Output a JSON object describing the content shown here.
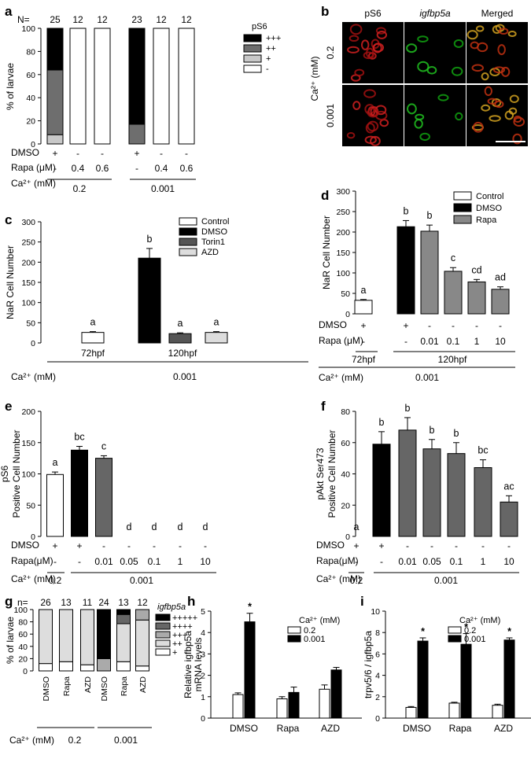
{
  "panels": [
    {
      "id": "a",
      "label": "a"
    },
    {
      "id": "b",
      "label": "b"
    },
    {
      "id": "c",
      "label": "c"
    },
    {
      "id": "d",
      "label": "d"
    },
    {
      "id": "e",
      "label": "e"
    },
    {
      "id": "f",
      "label": "f"
    },
    {
      "id": "g",
      "label": "g"
    },
    {
      "id": "h",
      "label": "h"
    },
    {
      "id": "i",
      "label": "i"
    }
  ],
  "micrograph_b": {
    "columns": [
      "pS6",
      "igfbp5a",
      "Merged"
    ],
    "side_label": "Ca²⁺ (mM)",
    "rows": [
      "0.2",
      "0.001"
    ]
  },
  "chart_data": [
    {
      "panel": "a",
      "type": "bar",
      "stacked": true,
      "ylabel": "% of larvae",
      "ylim": [
        0,
        100
      ],
      "yticks": [
        "0",
        "20",
        "40",
        "60",
        "80",
        "100"
      ],
      "n_label": "N=",
      "n": [
        "25",
        "12",
        "12",
        "23",
        "12",
        "12"
      ],
      "legend_title": "pS6",
      "series": [
        {
          "name": "+++",
          "color": "#000000",
          "values": [
            36,
            0,
            0,
            83,
            0,
            0
          ]
        },
        {
          "name": "++",
          "color": "#6e6e6e",
          "values": [
            56,
            0,
            0,
            17,
            0,
            0
          ]
        },
        {
          "name": "+",
          "color": "#c8c8c8",
          "values": [
            8,
            0,
            0,
            0,
            0,
            0
          ]
        },
        {
          "name": "-",
          "color": "#ffffff",
          "values": [
            0,
            100,
            100,
            0,
            100,
            100
          ]
        }
      ],
      "row_labels": [
        "DMSO",
        "Rapa (μM)",
        "Ca²⁺ (mM)"
      ],
      "dmso": [
        "+",
        "-",
        "-",
        "+",
        "-",
        "-"
      ],
      "rapa": [
        "-",
        "0.4",
        "0.6",
        "-",
        "0.4",
        "0.6"
      ],
      "ca_groups": [
        "0.2",
        "0.001"
      ]
    },
    {
      "panel": "c",
      "type": "bar",
      "ylabel": "NaR Cell Number",
      "ylim": [
        0,
        300
      ],
      "yticks": [
        "0",
        "50",
        "100",
        "150",
        "200",
        "250",
        "300"
      ],
      "categories": [
        "72hpf",
        "120hpf"
      ],
      "bars": [
        {
          "group": "72hpf",
          "series": "Control",
          "value": 26,
          "err": 2,
          "sig": "a"
        },
        {
          "group": "120hpf",
          "series": "DMSO",
          "value": 210,
          "err": 24,
          "sig": "b"
        },
        {
          "group": "120hpf",
          "series": "Torin1",
          "value": 23,
          "err": 2,
          "sig": "a"
        },
        {
          "group": "120hpf",
          "series": "AZD",
          "value": 26,
          "err": 2,
          "sig": "a"
        }
      ],
      "legend": [
        {
          "name": "Control",
          "color": "#ffffff"
        },
        {
          "name": "DMSO",
          "color": "#000000"
        },
        {
          "name": "Torin1",
          "color": "#555555"
        },
        {
          "name": "AZD",
          "color": "#dddddd"
        }
      ],
      "ca_label": "Ca²⁺ (mM)",
      "ca_value": "0.001"
    },
    {
      "panel": "d",
      "type": "bar",
      "ylabel": "NaR Cell Number",
      "ylim": [
        0,
        300
      ],
      "yticks": [
        "0",
        "50",
        "100",
        "150",
        "200",
        "250",
        "300"
      ],
      "bars": [
        {
          "value": 33,
          "err": 2,
          "sig": "a",
          "color": "#ffffff"
        },
        {
          "value": 213,
          "err": 15,
          "sig": "b",
          "color": "#000000"
        },
        {
          "value": 202,
          "err": 15,
          "sig": "b",
          "color": "#888888"
        },
        {
          "value": 104,
          "err": 9,
          "sig": "c",
          "color": "#888888"
        },
        {
          "value": 78,
          "err": 6,
          "sig": "cd",
          "color": "#888888"
        },
        {
          "value": 60,
          "err": 6,
          "sig": "ad",
          "color": "#888888"
        }
      ],
      "legend": [
        {
          "name": "Control",
          "color": "#ffffff"
        },
        {
          "name": "DMSO",
          "color": "#000000"
        },
        {
          "name": "Rapa",
          "color": "#888888"
        }
      ],
      "row_labels": [
        "DMSO",
        "Rapa (μM)",
        "Ca²⁺ (mM)"
      ],
      "dmso": [
        "+",
        "+",
        "-",
        "-",
        "-",
        "-"
      ],
      "rapa": [
        "-",
        "-",
        "0.01",
        "0.1",
        "1",
        "10"
      ],
      "hpf": [
        "72hpf",
        "120hpf"
      ],
      "ca_value": "0.001"
    },
    {
      "panel": "e",
      "type": "bar",
      "ylabel": [
        "pS6",
        "Positive Cell Number"
      ],
      "ylim": [
        0,
        200
      ],
      "yticks": [
        "0",
        "50",
        "100",
        "150",
        "200"
      ],
      "bars": [
        {
          "value": 99,
          "err": 4,
          "sig": "a",
          "color": "#ffffff"
        },
        {
          "value": 138,
          "err": 6,
          "sig": "bc",
          "color": "#000000"
        },
        {
          "value": 125,
          "err": 4,
          "sig": "c",
          "color": "#666666"
        },
        {
          "value": 0,
          "err": 0,
          "sig": "d",
          "color": "#666666"
        },
        {
          "value": 0,
          "err": 0,
          "sig": "d",
          "color": "#666666"
        },
        {
          "value": 0,
          "err": 0,
          "sig": "d",
          "color": "#666666"
        },
        {
          "value": 0,
          "err": 0,
          "sig": "d",
          "color": "#666666"
        }
      ],
      "row_labels": [
        "DMSO",
        "Rapa(μM)",
        "Ca²⁺ (mM)"
      ],
      "dmso": [
        "+",
        "+",
        "-",
        "-",
        "-",
        "-",
        "-"
      ],
      "rapa": [
        "-",
        "-",
        "0.01",
        "0.05",
        "0.1",
        "1",
        "10"
      ],
      "ca_groups": [
        "0.2",
        "0.001"
      ]
    },
    {
      "panel": "f",
      "type": "bar",
      "ylabel": [
        "pAkt Ser473",
        "Positive Cell Number"
      ],
      "ylim": [
        0,
        80
      ],
      "yticks": [
        "0",
        "20",
        "40",
        "60",
        "80"
      ],
      "bars": [
        {
          "value": 0,
          "err": 0,
          "sig": "a",
          "color": "#ffffff"
        },
        {
          "value": 59,
          "err": 8,
          "sig": "b",
          "color": "#000000"
        },
        {
          "value": 68,
          "err": 8,
          "sig": "b",
          "color": "#666666"
        },
        {
          "value": 56,
          "err": 6,
          "sig": "b",
          "color": "#666666"
        },
        {
          "value": 53,
          "err": 7,
          "sig": "b",
          "color": "#666666"
        },
        {
          "value": 44,
          "err": 5,
          "sig": "bc",
          "color": "#666666"
        },
        {
          "value": 22,
          "err": 4,
          "sig": "ac",
          "color": "#666666"
        }
      ],
      "row_labels": [
        "DMSO",
        "Rapa(μM)",
        "Ca²⁺ (mM)"
      ],
      "dmso": [
        "+",
        "+",
        "-",
        "-",
        "-",
        "-",
        "-"
      ],
      "rapa": [
        "-",
        "-",
        "0.01",
        "0.05",
        "0.1",
        "1",
        "10"
      ],
      "ca_groups": [
        "0.2",
        "0.001"
      ]
    },
    {
      "panel": "g",
      "type": "bar",
      "stacked": true,
      "ylabel": "% of larvae",
      "ylim": [
        0,
        100
      ],
      "yticks": [
        "0",
        "20",
        "40",
        "60",
        "80",
        "100"
      ],
      "n_label": "n=",
      "n": [
        "26",
        "13",
        "11",
        "24",
        "13",
        "12"
      ],
      "categories": [
        "DMSO",
        "Rapa",
        "AZD",
        "DMSO",
        "Rapa",
        "AZD"
      ],
      "legend_title": "igfbp5a",
      "series": [
        {
          "name": "+++++",
          "color": "#000000",
          "values": [
            0,
            0,
            0,
            80,
            8,
            0
          ]
        },
        {
          "name": "++++",
          "color": "#666666",
          "values": [
            0,
            0,
            0,
            0,
            15,
            0
          ]
        },
        {
          "name": "+++",
          "color": "#aaaaaa",
          "values": [
            0,
            0,
            0,
            20,
            0,
            17
          ]
        },
        {
          "name": "++",
          "color": "#dddddd",
          "values": [
            88,
            85,
            90,
            0,
            62,
            75
          ]
        },
        {
          "name": "+",
          "color": "#ffffff",
          "values": [
            12,
            15,
            10,
            0,
            15,
            8
          ]
        }
      ],
      "ca_label": "Ca²⁺ (mM)",
      "ca_groups": [
        "0.2",
        "0.001"
      ]
    },
    {
      "panel": "h",
      "type": "bar",
      "ylabel": [
        "Relative igfbp5a",
        "mRNA levels"
      ],
      "ylim": [
        0,
        5
      ],
      "yticks": [
        "0",
        "1",
        "2",
        "3",
        "4",
        "5"
      ],
      "categories": [
        "DMSO",
        "Rapa",
        "AZD"
      ],
      "legend_title": "Ca²⁺ (mM)",
      "series": [
        {
          "name": "0.2",
          "color": "#ffffff",
          "values": [
            1.1,
            0.9,
            1.35
          ],
          "err": [
            0.08,
            0.1,
            0.2
          ]
        },
        {
          "name": "0.001",
          "color": "#000000",
          "values": [
            4.5,
            1.2,
            2.25
          ],
          "err": [
            0.4,
            0.25,
            0.12
          ]
        }
      ],
      "marks": [
        "*",
        "",
        ""
      ]
    },
    {
      "panel": "i",
      "type": "bar",
      "ylabel": "trpv5/6 / igfbp5a",
      "ylim": [
        0,
        10
      ],
      "yticks": [
        "0",
        "2",
        "4",
        "6",
        "8",
        "10"
      ],
      "categories": [
        "DMSO",
        "Rapa",
        "AZD"
      ],
      "legend_title": "Ca²⁺ (mM)",
      "series": [
        {
          "name": "0.2",
          "color": "#ffffff",
          "values": [
            1.0,
            1.4,
            1.2
          ],
          "err": [
            0.08,
            0.08,
            0.1
          ]
        },
        {
          "name": "0.001",
          "color": "#000000",
          "values": [
            7.2,
            6.9,
            7.3
          ],
          "err": [
            0.3,
            1.0,
            0.2
          ]
        }
      ],
      "marks": [
        "*",
        "*",
        "*"
      ]
    }
  ]
}
